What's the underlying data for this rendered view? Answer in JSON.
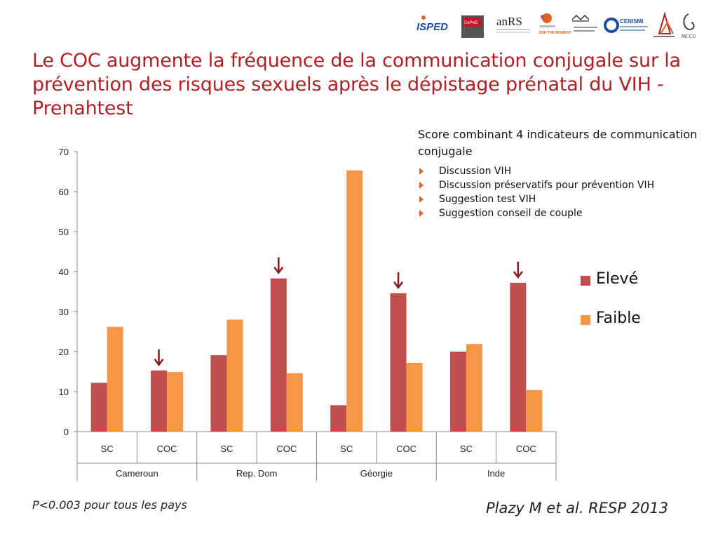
{
  "logos": [
    {
      "name": "isped-logo",
      "text": "ISPED",
      "color": "#1a4d9e"
    },
    {
      "name": "cepid-logo",
      "text": "CePeD",
      "color": "#b21e24"
    },
    {
      "name": "anrs-logo",
      "text": "anRS",
      "color": "#222222"
    },
    {
      "name": "join-the-moment-logo",
      "text": "JOIN THE MOMENT",
      "color": "#e0641d"
    },
    {
      "name": "indian-council-logo",
      "text": "",
      "color": "#333333"
    },
    {
      "name": "cenismi-logo",
      "text": "CENISMI",
      "color": "#1a4d9e"
    },
    {
      "name": "centre-pasteur-logo",
      "text": "",
      "color": "#b21e24"
    },
    {
      "name": "mccu-logo",
      "text": "MCCU",
      "color": "#333333"
    }
  ],
  "title": "Le COC augmente la fréquence de la communication conjugale sur la prévention des risques sexuels après le dépistage prénatal du VIH - Prenahtest",
  "info": {
    "heading": "Score combinant 4 indicateurs de communication conjugale",
    "items": [
      "Discussion VIH",
      "Discussion préservatifs pour prévention VIH",
      "Suggestion test VIH",
      "Suggestion conseil de couple"
    ]
  },
  "footnote": "P<0.003 pour tous les pays",
  "citation": "Plazy M et al. RESP 2013",
  "colors": {
    "eleve": "#c0504d",
    "faible": "#f79646",
    "arrow": "#8b1a1a",
    "title": "#b21e24",
    "bullet": "#e0641d"
  },
  "chart_data": {
    "type": "bar",
    "title": "",
    "xlabel": "",
    "ylabel": "",
    "ylim": [
      0,
      70
    ],
    "yticks": [
      0,
      10,
      20,
      30,
      40,
      50,
      60,
      70
    ],
    "grid": false,
    "legend_position": "right",
    "groups": [
      {
        "label": "Cameroun",
        "categories": [
          "SC",
          "COC"
        ]
      },
      {
        "label": "Rep. Dom",
        "categories": [
          "SC",
          "COC"
        ]
      },
      {
        "label": "Géorgie",
        "categories": [
          "SC",
          "COC"
        ]
      },
      {
        "label": "Inde",
        "categories": [
          "SC",
          "COC"
        ]
      }
    ],
    "categories": [
      "SC",
      "COC",
      "SC",
      "COC",
      "SC",
      "COC",
      "SC",
      "COC"
    ],
    "series": [
      {
        "name": "Elevé",
        "values": [
          12.2,
          15.3,
          19.1,
          38.3,
          6.6,
          34.6,
          20.0,
          37.2
        ]
      },
      {
        "name": "Faible",
        "values": [
          26.2,
          14.9,
          28.0,
          14.6,
          65.3,
          17.2,
          21.9,
          10.4
        ]
      }
    ],
    "arrow_categories": [
      1,
      3,
      5,
      7
    ]
  }
}
